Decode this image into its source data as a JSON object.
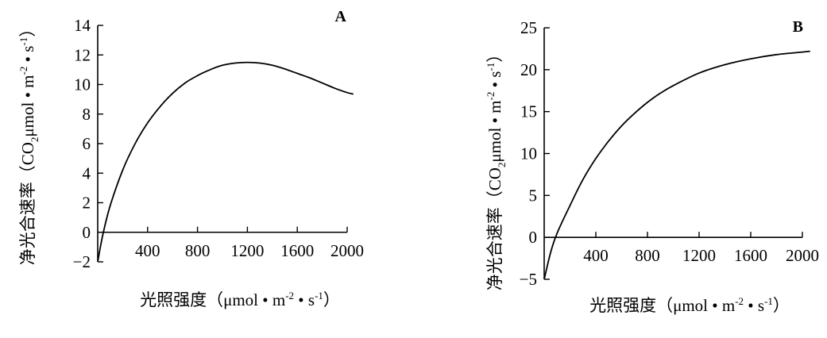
{
  "chart_data": [
    {
      "type": "line",
      "panel_label": "A",
      "xlabel_main": "光照强度（μmol • m",
      "xlabel_sup1": "-2",
      "xlabel_mid": " • s",
      "xlabel_sup2": "-1",
      "xlabel_end": "）",
      "ylabel_main": "净光合速率（CO",
      "ylabel_sub": "2",
      "ylabel_unit": "μmol • m",
      "ylabel_sup1": "-2",
      "ylabel_mid": " • s",
      "ylabel_sup2": "-1",
      "ylabel_end": "）",
      "xlim": [
        0,
        2000
      ],
      "ylim": [
        -2,
        14
      ],
      "xticks": [
        400,
        800,
        1200,
        1600,
        2000
      ],
      "xtick_labels": [
        "400",
        "800",
        "1200",
        "1600",
        "2000"
      ],
      "yticks": [
        -2,
        0,
        2,
        4,
        6,
        8,
        10,
        12,
        14
      ],
      "ytick_labels": [
        "−2",
        "0",
        "2",
        "4",
        "6",
        "8",
        "10",
        "12",
        "14"
      ],
      "x": [
        0,
        40,
        100,
        200,
        300,
        400,
        500,
        600,
        700,
        800,
        900,
        1000,
        1100,
        1200,
        1300,
        1400,
        1500,
        1600,
        1700,
        1800,
        1900,
        2000,
        2050
      ],
      "y": [
        -2.0,
        -0.2,
        1.8,
        4.2,
        6.0,
        7.4,
        8.5,
        9.4,
        10.1,
        10.6,
        11.0,
        11.3,
        11.45,
        11.5,
        11.45,
        11.3,
        11.05,
        10.75,
        10.45,
        10.1,
        9.75,
        9.45,
        9.35
      ]
    },
    {
      "type": "line",
      "panel_label": "B",
      "xlabel_main": "光照强度（μmol • m",
      "xlabel_sup1": "-2",
      "xlabel_mid": " • s",
      "xlabel_sup2": "-1",
      "xlabel_end": "）",
      "ylabel_main": "净光合速率（CO",
      "ylabel_sub": "2",
      "ylabel_unit": "μmol • m",
      "ylabel_sup1": "-2",
      "ylabel_mid": " • s",
      "ylabel_sup2": "-1",
      "ylabel_end": "）",
      "xlim": [
        0,
        2000
      ],
      "ylim": [
        -5,
        25
      ],
      "xticks": [
        400,
        800,
        1200,
        1600,
        2000
      ],
      "xtick_labels": [
        "400",
        "800",
        "1200",
        "1600",
        "2000"
      ],
      "yticks": [
        -5,
        0,
        5,
        10,
        15,
        20,
        25
      ],
      "ytick_labels": [
        "−5",
        "0",
        "5",
        "10",
        "15",
        "20",
        "25"
      ],
      "x": [
        0,
        50,
        100,
        200,
        300,
        400,
        500,
        600,
        700,
        800,
        900,
        1000,
        1200,
        1400,
        1600,
        1800,
        2000,
        2060
      ],
      "y": [
        -5.0,
        -1.8,
        0.5,
        3.8,
        6.9,
        9.4,
        11.5,
        13.3,
        14.8,
        16.1,
        17.2,
        18.1,
        19.6,
        20.6,
        21.3,
        21.8,
        22.1,
        22.2
      ]
    }
  ]
}
